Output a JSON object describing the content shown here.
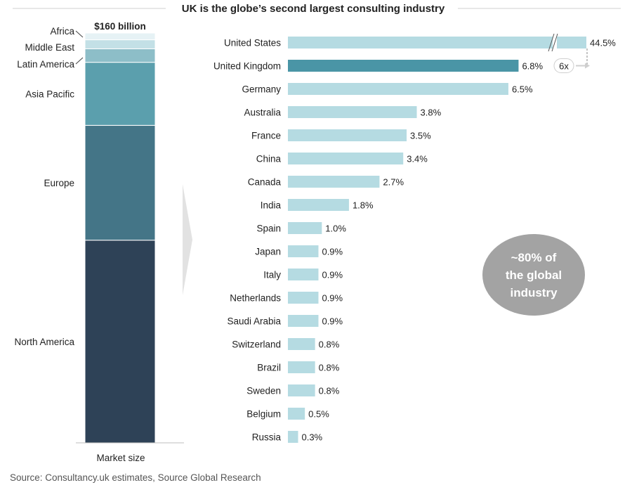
{
  "title": "UK is the globe’s second largest consulting industry",
  "source": "Source: Consultancy.uk estimates, Source Global Research",
  "callout": [
    "~80% of",
    "the global",
    "industry"
  ],
  "multiplier_label": "6x",
  "colors": {
    "bar": "#b5dbe2",
    "bar_highlight": "#4a95a6",
    "north_america": "#2e4257",
    "europe": "#447587",
    "asia_pacific": "#5b9fad",
    "latin_america": "#8dbec8",
    "middle_east": "#c3e0e6",
    "africa": "#e6f2f5",
    "callout_bg": "#a3a3a3",
    "arrow": "#e2e2e2"
  },
  "chart_data": [
    {
      "type": "bar",
      "stacked": true,
      "total_label": "$160 billion",
      "xlabel": "Market size",
      "segments": [
        {
          "name": "North America",
          "value": 45.0
        },
        {
          "name": "Europe",
          "value": 25.5
        },
        {
          "name": "Asia Pacific",
          "value": 14.0
        },
        {
          "name": "Latin America",
          "value": 3.0
        },
        {
          "name": "Middle East",
          "value": 2.0
        },
        {
          "name": "Africa",
          "value": 1.5
        }
      ],
      "value_unit": "% of market (estimated)"
    },
    {
      "type": "bar",
      "orientation": "horizontal",
      "categories": [
        "United States",
        "United Kingdom",
        "Germany",
        "Australia",
        "France",
        "China",
        "Canada",
        "India",
        "Spain",
        "Japan",
        "Italy",
        "Netherlands",
        "Saudi Arabia",
        "Switzerland",
        "Brazil",
        "Sweden",
        "Belgium",
        "Russia"
      ],
      "values": [
        44.5,
        6.8,
        6.5,
        3.8,
        3.5,
        3.4,
        2.7,
        1.8,
        1.0,
        0.9,
        0.9,
        0.9,
        0.9,
        0.8,
        0.8,
        0.8,
        0.5,
        0.3
      ],
      "value_labels": [
        "44.5%",
        "6.8%",
        "6.5%",
        "3.8%",
        "3.5%",
        "3.4%",
        "2.7%",
        "1.8%",
        "1.0%",
        "0.9%",
        "0.9%",
        "0.9%",
        "0.9%",
        "0.8%",
        "0.8%",
        "0.8%",
        "0.5%",
        "0.3%"
      ],
      "highlight": "United Kingdom",
      "axis_break": "United States"
    }
  ]
}
